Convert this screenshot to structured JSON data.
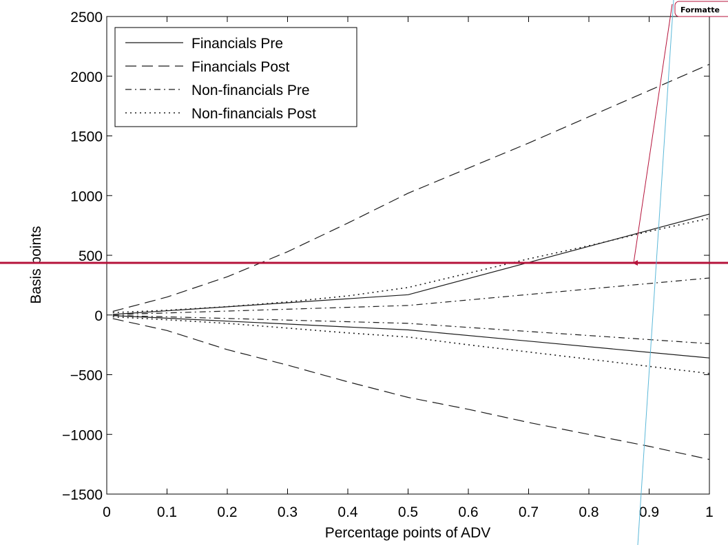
{
  "chart_data": {
    "type": "line",
    "title": "",
    "xlabel": "Percentage points of ADV",
    "ylabel": "Basis points",
    "xlim": [
      0,
      1
    ],
    "ylim": [
      -1500,
      2500
    ],
    "xticks": [
      0,
      0.1,
      0.2,
      0.3,
      0.4,
      0.5,
      0.6,
      0.7,
      0.8,
      0.9,
      1
    ],
    "xtick_labels": [
      "0",
      "0.1",
      "0.2",
      "0.3",
      "0.4",
      "0.5",
      "0.6",
      "0.7",
      "0.8",
      "0.9",
      "1"
    ],
    "yticks": [
      -1500,
      -1000,
      -500,
      0,
      500,
      1000,
      1500,
      2000,
      2500
    ],
    "ytick_labels": [
      "−1500",
      "−1000",
      "−500",
      "0",
      "500",
      "1000",
      "1500",
      "2000",
      "2500"
    ],
    "grid": false,
    "legend_position": "top-left",
    "series": [
      {
        "name": "Financials Pre",
        "style": "solid",
        "upper": {
          "x": [
            0.01,
            0.5,
            1.0
          ],
          "y": [
            5,
            170,
            845
          ]
        },
        "lower": {
          "x": [
            0.01,
            0.5,
            1.0
          ],
          "y": [
            -5,
            -125,
            -360
          ]
        }
      },
      {
        "name": "Financials Post",
        "style": "dashed",
        "upper": {
          "x": [
            0.01,
            0.1,
            0.2,
            0.3,
            0.4,
            0.5,
            0.6,
            0.7,
            0.8,
            0.9,
            1.0
          ],
          "y": [
            30,
            150,
            320,
            530,
            770,
            1020,
            1230,
            1440,
            1660,
            1880,
            2100
          ]
        },
        "lower": {
          "x": [
            0.01,
            0.1,
            0.2,
            0.3,
            0.4,
            0.5,
            0.6,
            0.7,
            0.8,
            0.9,
            1.0
          ],
          "y": [
            -30,
            -130,
            -290,
            -420,
            -560,
            -690,
            -790,
            -900,
            -1000,
            -1100,
            -1210
          ]
        }
      },
      {
        "name": "Non-financials Pre",
        "style": "dashdot",
        "upper": {
          "x": [
            0.01,
            0.5,
            1.0
          ],
          "y": [
            3,
            80,
            310
          ]
        },
        "lower": {
          "x": [
            0.01,
            0.5,
            1.0
          ],
          "y": [
            -3,
            -70,
            -240
          ]
        }
      },
      {
        "name": "Non-financials Post",
        "style": "dotted",
        "upper": {
          "x": [
            0.01,
            0.1,
            0.2,
            0.3,
            0.4,
            0.5,
            0.6,
            0.7,
            0.8,
            0.9,
            1.0
          ],
          "y": [
            20,
            40,
            70,
            110,
            160,
            230,
            350,
            470,
            580,
            700,
            810
          ]
        },
        "lower": {
          "x": [
            0.01,
            0.1,
            0.2,
            0.3,
            0.4,
            0.5,
            0.6,
            0.7,
            0.8,
            0.9,
            1.0
          ],
          "y": [
            -15,
            -40,
            -70,
            -110,
            -150,
            -185,
            -250,
            -310,
            -370,
            -430,
            -490
          ]
        }
      }
    ]
  },
  "annotation": {
    "comment_label": "Formatte",
    "line_color": "#b5123a",
    "comment_color": "#b5123a",
    "marker_color": "#5bb8d8"
  }
}
